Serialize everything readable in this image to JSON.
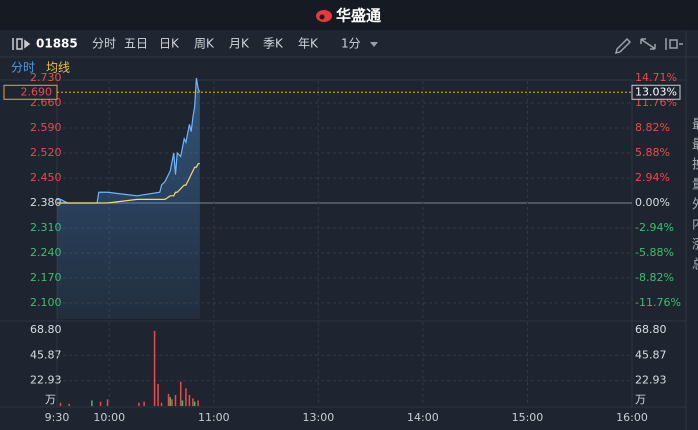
{
  "header": {
    "title": "华盛通"
  },
  "toolbar": {
    "code": "01885",
    "tabs": [
      "分时",
      "五日",
      "日K",
      "周K",
      "月K",
      "季K",
      "年K"
    ],
    "interval": "1分",
    "indicators": [
      "分时",
      "均线"
    ]
  },
  "side_labels": [
    "最",
    "最",
    "换",
    "量",
    "外",
    "内",
    "涨",
    "总"
  ],
  "chart_data": {
    "type": "line",
    "x": [
      0,
      2,
      6,
      23,
      24,
      29,
      46,
      59,
      60,
      62,
      65,
      67,
      68,
      69,
      71,
      73,
      74,
      76,
      77,
      78,
      79,
      80,
      81,
      82
    ],
    "series": [
      {
        "name": "分时",
        "color": "#6fb6ff",
        "values": [
          2.39,
          2.39,
          2.38,
          2.38,
          2.41,
          2.41,
          2.4,
          2.41,
          2.43,
          2.44,
          2.47,
          2.52,
          2.46,
          2.52,
          2.51,
          2.56,
          2.55,
          2.6,
          2.58,
          2.62,
          2.65,
          2.73,
          2.7,
          2.69
        ]
      },
      {
        "name": "均线",
        "color": "#f5d76e",
        "values": [
          2.38,
          2.38,
          2.38,
          2.38,
          2.38,
          2.38,
          2.39,
          2.39,
          2.39,
          2.39,
          2.4,
          2.4,
          2.41,
          2.41,
          2.42,
          2.43,
          2.43,
          2.45,
          2.46,
          2.47,
          2.48,
          2.48,
          2.49,
          2.49
        ]
      }
    ],
    "xlim": [
      0,
      330
    ],
    "xticks": [
      {
        "value": 0,
        "label": "9:30"
      },
      {
        "value": 30,
        "label": "10:00"
      },
      {
        "value": 90,
        "label": "11:00"
      },
      {
        "value": 150,
        "label": "13:00"
      },
      {
        "value": 210,
        "label": "14:00"
      },
      {
        "value": 270,
        "label": "15:00"
      },
      {
        "value": 330,
        "label": "16:00"
      }
    ],
    "ylim": [
      2.055,
      2.73
    ],
    "yticks": [
      {
        "value": 2.73,
        "label": "2.730"
      },
      {
        "value": 2.66,
        "label": "2.660"
      },
      {
        "value": 2.59,
        "label": "2.590"
      },
      {
        "value": 2.52,
        "label": "2.520"
      },
      {
        "value": 2.45,
        "label": "2.450"
      },
      {
        "value": 2.38,
        "label": "2.380"
      },
      {
        "value": 2.31,
        "label": "2.310"
      },
      {
        "value": 2.24,
        "label": "2.240"
      },
      {
        "value": 2.17,
        "label": "2.170"
      },
      {
        "value": 2.1,
        "label": "2.100"
      }
    ],
    "y2lim": [
      -13.66,
      14.71
    ],
    "y2ticks": [
      {
        "value": 14.71,
        "label": "14.71%"
      },
      {
        "value": 11.76,
        "label": "11.76%"
      },
      {
        "value": 8.82,
        "label": "8.82%"
      },
      {
        "value": 5.88,
        "label": "5.88%"
      },
      {
        "value": 2.94,
        "label": "2.94%"
      },
      {
        "value": 0,
        "label": "0.00%"
      },
      {
        "value": -2.94,
        "label": "-2.94%"
      },
      {
        "value": -5.88,
        "label": "-5.88%"
      },
      {
        "value": -8.82,
        "label": "-8.82%"
      },
      {
        "value": -11.76,
        "label": "-11.76%"
      }
    ],
    "up_color": "#e84b4b",
    "down_color": "#3dbf6b",
    "flat_color": "#d8dce2",
    "grid": true,
    "last_price": {
      "value": 2.69,
      "label": "2.690"
    },
    "last_change": {
      "value": 13.03,
      "label": "13.03%"
    },
    "volume": {
      "x": [
        2,
        7,
        20,
        25,
        29,
        47,
        50,
        56,
        58,
        60,
        64,
        65,
        66,
        68,
        71,
        72,
        74,
        76,
        78,
        79,
        81
      ],
      "values": [
        3,
        2,
        5,
        4,
        6,
        3,
        4,
        68,
        20,
        3,
        11,
        8,
        6,
        10,
        22,
        5,
        16,
        10,
        7,
        4,
        5
      ],
      "colors": [
        "#e84b4b",
        "#e84b4b",
        "#3dbf6b",
        "#e84b4b",
        "#e84b4b",
        "#e84b4b",
        "#e84b4b",
        "#e84b4b",
        "#e84b4b",
        "#e84b4b",
        "#e84b4b",
        "#3dbf6b",
        "#e84b4b",
        "#e84b4b",
        "#e84b4b",
        "#3dbf6b",
        "#e84b4b",
        "#e84b4b",
        "#e84b4b",
        "#3dbf6b",
        "#e84b4b"
      ],
      "ylim": [
        0,
        68.8
      ],
      "yticks": [
        {
          "value": 68.8,
          "label": "68.80"
        },
        {
          "value": 45.87,
          "label": "45.87"
        },
        {
          "value": 22.93,
          "label": "22.93"
        }
      ],
      "unit": "万"
    }
  }
}
